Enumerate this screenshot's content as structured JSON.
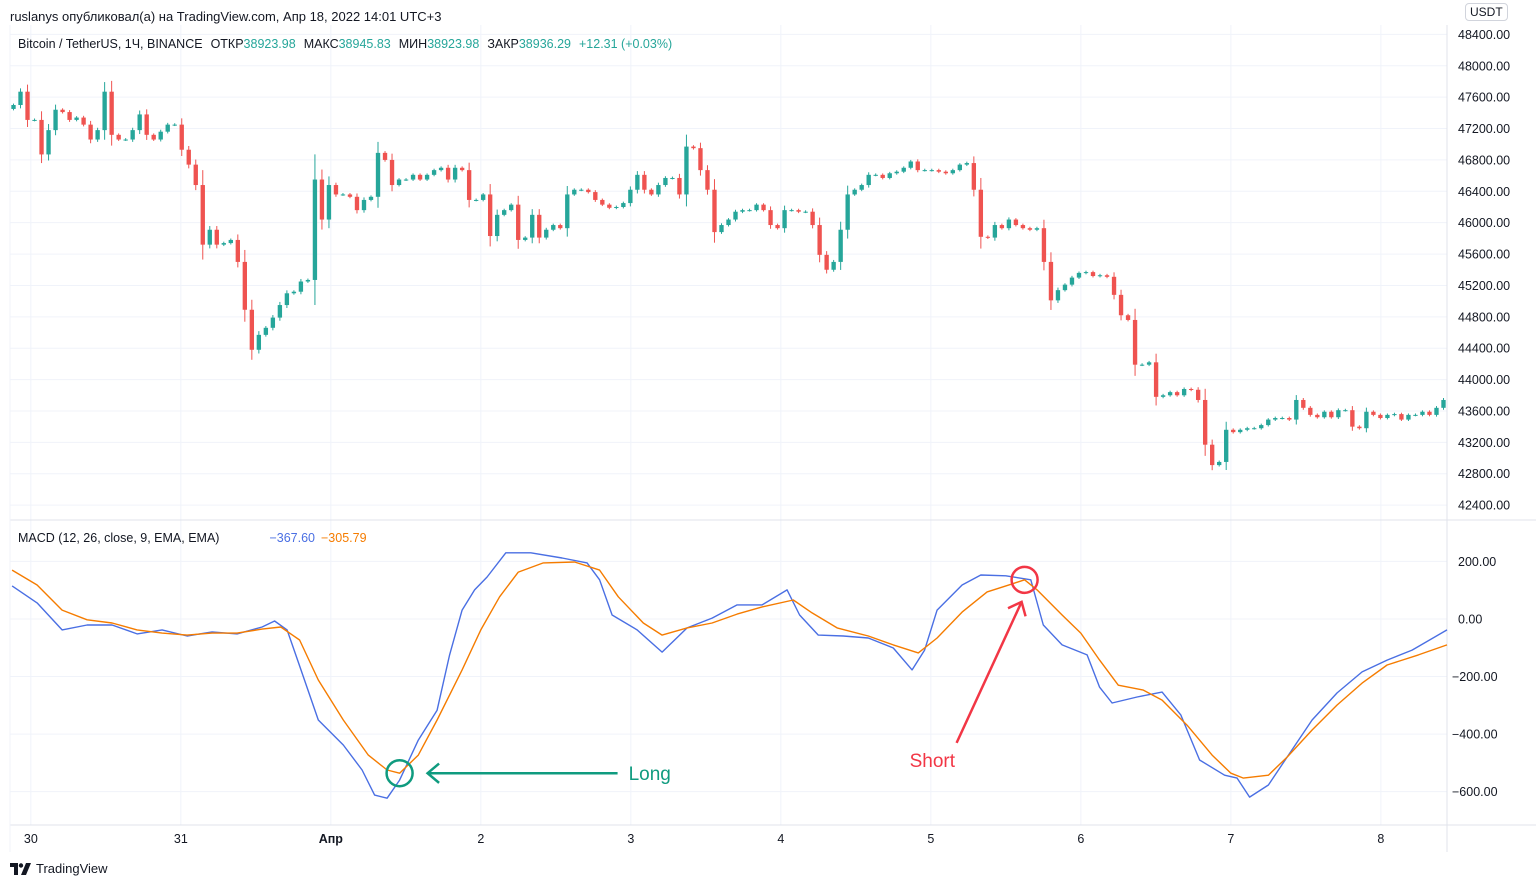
{
  "header": {
    "published": "ruslanys опубликовал(а) на TradingView.com, Апр 18, 2022 14:01 UTC+3"
  },
  "legend": {
    "symbol": "Bitcoin / TetherUS, 1Ч, BINANCE",
    "open_label": "ОТКР",
    "open": "38923.98",
    "high_label": "МАКС",
    "high": "38945.83",
    "low_label": "МИН",
    "low": "38923.98",
    "close_label": "ЗАКР",
    "close": "38936.29",
    "change": "+12.31 (+0.03%)"
  },
  "macd_legend": {
    "title": "MACD (12, 26, close, 9, EMA, EMA)",
    "macd_value": "−367.60",
    "signal_value": "−305.79"
  },
  "currency_badge": "USDT",
  "footer": {
    "brand": "TradingView"
  },
  "colors": {
    "up": "#26a69a",
    "down": "#ef5350",
    "macd": "#4a6fe3",
    "signal": "#f57c00",
    "long": "#0f9b7f",
    "short": "#f23645",
    "grid": "#f0f3fa"
  },
  "chart_data": [
    {
      "type": "candlestick",
      "title": "Bitcoin / TetherUS, 1Ч, BINANCE",
      "x_range": [
        "03-29 20:40",
        "04-08 10:35"
      ],
      "ylim": [
        42210,
        48520
      ],
      "y_ticks": [
        "48400.00",
        "48000.00",
        "47600.00",
        "47200.00",
        "46800.00",
        "46400.00",
        "46000.00",
        "45600.00",
        "45200.00",
        "44800.00",
        "44400.00",
        "44000.00",
        "43600.00",
        "43200.00",
        "42800.00",
        "42400.00"
      ],
      "x_ticks": [
        {
          "label": "30",
          "time": "03-30 00:00"
        },
        {
          "label": "31",
          "time": "03-31 00:00"
        },
        {
          "label": "Апр",
          "time": "04-01 00:00"
        },
        {
          "label": "2",
          "time": "04-02 00:00"
        },
        {
          "label": "3",
          "time": "04-03 00:00"
        },
        {
          "label": "4",
          "time": "04-04 00:00"
        },
        {
          "label": "5",
          "time": "04-05 00:00"
        },
        {
          "label": "6",
          "time": "04-06 00:00"
        },
        {
          "label": "7",
          "time": "04-07 00:00"
        },
        {
          "label": "8",
          "time": "04-08 00:00"
        }
      ],
      "grid": true,
      "first_open": 47450,
      "closes": [
        47500,
        47670,
        47310,
        47310,
        46870,
        47180,
        47440,
        47410,
        47310,
        47340,
        47250,
        47060,
        47180,
        47670,
        47120,
        47060,
        47060,
        47180,
        47380,
        47120,
        47060,
        47160,
        47250,
        47250,
        46930,
        46740,
        46480,
        45720,
        45910,
        45720,
        45740,
        45780,
        45500,
        44890,
        44380,
        44570,
        44660,
        44790,
        44950,
        45100,
        45120,
        45250,
        45270,
        46550,
        46040,
        46480,
        46360,
        46360,
        46330,
        46160,
        46290,
        46330,
        46890,
        46800,
        46480,
        46550,
        46550,
        46610,
        46550,
        46610,
        46670,
        46700,
        46550,
        46700,
        46670,
        46290,
        46290,
        46360,
        45830,
        46100,
        46160,
        46230,
        45780,
        45810,
        46100,
        45810,
        45910,
        45970,
        45930,
        46360,
        46420,
        46420,
        46390,
        46290,
        46230,
        46190,
        46200,
        46250,
        46420,
        46610,
        46420,
        46360,
        46480,
        46570,
        46570,
        46360,
        46970,
        46950,
        46670,
        46420,
        45880,
        45970,
        46040,
        46140,
        46160,
        46160,
        46230,
        46160,
        45970,
        45930,
        46160,
        46160,
        46140,
        46140,
        45970,
        45590,
        45400,
        45500,
        45910,
        46360,
        46420,
        46480,
        46610,
        46610,
        46570,
        46630,
        46650,
        46700,
        46780,
        46670,
        46670,
        46670,
        46650,
        46630,
        46670,
        46740,
        46760,
        46420,
        45820,
        45810,
        45970,
        45930,
        46040,
        45970,
        45930,
        45910,
        45930,
        45500,
        45010,
        45140,
        45210,
        45300,
        45360,
        45370,
        45320,
        45330,
        45310,
        45080,
        44820,
        44760,
        44190,
        44190,
        44220,
        43780,
        43800,
        43840,
        43800,
        43880,
        43870,
        43740,
        43170,
        42910,
        42950,
        43360,
        43330,
        43360,
        43380,
        43380,
        43420,
        43490,
        43510,
        43510,
        43490,
        43740,
        43640,
        43550,
        43520,
        43590,
        43520,
        43610,
        43610,
        43400,
        43380,
        43590,
        43550,
        43510,
        43550,
        43560,
        43490,
        43550,
        43550,
        43590,
        43550,
        43640,
        43740
      ]
    },
    {
      "type": "line",
      "title": "MACD (12, 26, close, 9, EMA, EMA)",
      "ylim": [
        -716,
        344
      ],
      "y_ticks": [
        "200.00",
        "0.00",
        "−200.00",
        "−400.00",
        "−600.00"
      ],
      "series": [
        {
          "name": "MACD",
          "color": "#4a6fe3",
          "points": [
            [
              "03-29 21:00",
              115
            ],
            [
              "03-30 01:00",
              56
            ],
            [
              "03-30 05:00",
              -38
            ],
            [
              "03-30 09:00",
              -21
            ],
            [
              "03-30 13:00",
              -21
            ],
            [
              "03-30 17:00",
              -52
            ],
            [
              "03-30 21:00",
              -38
            ],
            [
              "03-31 01:00",
              -59
            ],
            [
              "03-31 05:00",
              -45
            ],
            [
              "03-31 09:00",
              -52
            ],
            [
              "03-31 13:00",
              -28
            ],
            [
              "03-31 15:00",
              -7
            ],
            [
              "03-31 17:00",
              -38
            ],
            [
              "03-31 19:00",
              -163
            ],
            [
              "03-31 22:00",
              -351
            ],
            [
              "04-01 02:00",
              -438
            ],
            [
              "04-01 05:00",
              -525
            ],
            [
              "04-01 07:00",
              -612
            ],
            [
              "04-01 09:00",
              -623
            ],
            [
              "04-01 11:00",
              -560
            ],
            [
              "04-01 14:00",
              -421
            ],
            [
              "04-01 17:00",
              -317
            ],
            [
              "04-01 19:00",
              -125
            ],
            [
              "04-01 21:00",
              31
            ],
            [
              "04-01 23:00",
              101
            ],
            [
              "04-02 01:00",
              146
            ],
            [
              "04-02 04:00",
              230
            ],
            [
              "04-02 08:00",
              230
            ],
            [
              "04-02 13:00",
              212
            ],
            [
              "04-02 17:00",
              195
            ],
            [
              "04-02 19:00",
              136
            ],
            [
              "04-02 21:00",
              14
            ],
            [
              "04-03 01:00",
              -38
            ],
            [
              "04-03 05:00",
              -115
            ],
            [
              "04-03 09:00",
              -31
            ],
            [
              "04-03 13:00",
              3
            ],
            [
              "04-03 17:00",
              49
            ],
            [
              "04-03 21:00",
              49
            ],
            [
              "04-04 01:00",
              101
            ],
            [
              "04-04 03:00",
              14
            ],
            [
              "04-04 06:00",
              -56
            ],
            [
              "04-04 10:00",
              -59
            ],
            [
              "04-04 14:00",
              -66
            ],
            [
              "04-04 18:00",
              -101
            ],
            [
              "04-04 21:00",
              -177
            ],
            [
              "04-04 23:00",
              -108
            ],
            [
              "04-05 01:00",
              31
            ],
            [
              "04-05 05:00",
              118
            ],
            [
              "04-05 08:00",
              153
            ],
            [
              "04-05 12:00",
              150
            ],
            [
              "04-05 14:00",
              143
            ],
            [
              "04-05 16:00",
              136
            ],
            [
              "04-05 18:00",
              -21
            ],
            [
              "04-05 21:00",
              -90
            ],
            [
              "04-06 01:00",
              -125
            ],
            [
              "04-06 03:00",
              -237
            ],
            [
              "04-06 05:00",
              -292
            ],
            [
              "04-06 09:00",
              -271
            ],
            [
              "04-06 13:00",
              -254
            ],
            [
              "04-06 16:00",
              -334
            ],
            [
              "04-06 19:00",
              -490
            ],
            [
              "04-06 23:00",
              -543
            ],
            [
              "04-07 01:00",
              -553
            ],
            [
              "04-07 03:00",
              -619
            ],
            [
              "04-07 06:00",
              -577
            ],
            [
              "04-07 09:00",
              -480
            ],
            [
              "04-07 13:00",
              -351
            ],
            [
              "04-07 17:00",
              -257
            ],
            [
              "04-07 21:00",
              -184
            ],
            [
              "04-08 01:00",
              -143
            ],
            [
              "04-08 05:00",
              -108
            ],
            [
              "04-08 10:35",
              -38
            ]
          ]
        },
        {
          "name": "Signal",
          "color": "#f57c00",
          "points": [
            [
              "03-29 21:00",
              170
            ],
            [
              "03-30 01:00",
              118
            ],
            [
              "03-30 05:00",
              31
            ],
            [
              "03-30 09:00",
              -3
            ],
            [
              "03-30 13:00",
              -14
            ],
            [
              "03-30 17:00",
              -38
            ],
            [
              "03-30 21:00",
              -49
            ],
            [
              "03-31 01:00",
              -56
            ],
            [
              "03-31 05:00",
              -49
            ],
            [
              "03-31 09:00",
              -49
            ],
            [
              "03-31 13:00",
              -35
            ],
            [
              "03-31 16:00",
              -28
            ],
            [
              "03-31 19:00",
              -73
            ],
            [
              "03-31 22:00",
              -212
            ],
            [
              "04-01 02:00",
              -351
            ],
            [
              "04-01 06:00",
              -473
            ],
            [
              "04-01 09:00",
              -525
            ],
            [
              "04-01 11:00",
              -536
            ],
            [
              "04-01 14:00",
              -473
            ],
            [
              "04-01 17:00",
              -351
            ],
            [
              "04-01 21:00",
              -177
            ],
            [
              "04-02 00:00",
              -38
            ],
            [
              "04-02 03:00",
              77
            ],
            [
              "04-02 06:00",
              163
            ],
            [
              "04-02 10:00",
              195
            ],
            [
              "04-02 15:00",
              198
            ],
            [
              "04-02 19:00",
              170
            ],
            [
              "04-02 22:00",
              77
            ],
            [
              "04-03 02:00",
              -14
            ],
            [
              "04-03 05:00",
              -56
            ],
            [
              "04-03 09:00",
              -31
            ],
            [
              "04-03 13:00",
              -14
            ],
            [
              "04-03 17:00",
              17
            ],
            [
              "04-03 21:00",
              42
            ],
            [
              "04-04 02:00",
              66
            ],
            [
              "04-04 05:00",
              21
            ],
            [
              "04-04 09:00",
              -31
            ],
            [
              "04-04 14:00",
              -59
            ],
            [
              "04-04 18:00",
              -90
            ],
            [
              "04-04 22:00",
              -118
            ],
            [
              "04-05 01:00",
              -66
            ],
            [
              "04-05 05:00",
              24
            ],
            [
              "04-05 09:00",
              94
            ],
            [
              "04-05 13:00",
              122
            ],
            [
              "04-05 15:00",
              136
            ],
            [
              "04-05 17:00",
              101
            ],
            [
              "04-05 21:00",
              14
            ],
            [
              "04-06 00:00",
              -49
            ],
            [
              "04-06 03:00",
              -143
            ],
            [
              "04-06 06:00",
              -230
            ],
            [
              "04-06 10:00",
              -247
            ],
            [
              "04-06 13:00",
              -282
            ],
            [
              "04-06 17:00",
              -369
            ],
            [
              "04-06 21:00",
              -473
            ],
            [
              "04-07 00:00",
              -536
            ],
            [
              "04-07 02:00",
              -553
            ],
            [
              "04-07 06:00",
              -543
            ],
            [
              "04-07 09:00",
              -480
            ],
            [
              "04-07 13:00",
              -386
            ],
            [
              "04-07 17:00",
              -299
            ],
            [
              "04-07 21:00",
              -223
            ],
            [
              "04-08 01:00",
              -160
            ],
            [
              "04-08 06:00",
              -125
            ],
            [
              "04-08 10:35",
              -90
            ]
          ]
        }
      ],
      "annotations": [
        {
          "label": "Long",
          "time": "04-01 11:00",
          "value": -536,
          "color": "#0f9b7f"
        },
        {
          "label": "Short",
          "time": "04-05 15:00",
          "value": 136,
          "color": "#f23645"
        }
      ]
    }
  ]
}
